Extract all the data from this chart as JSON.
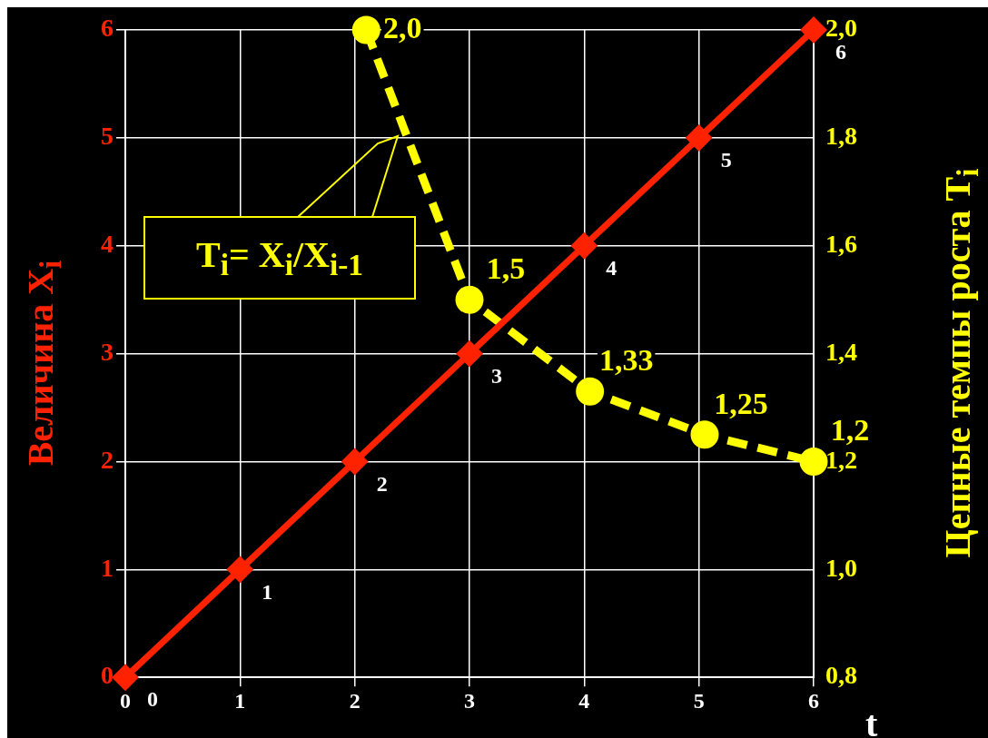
{
  "chart_data": {
    "type": "line",
    "xlabel": "t",
    "ylabel": "Величина X$_{i}$",
    "y2label": "Цепные темпы роста T$_{i}$",
    "x": [
      0,
      1,
      2,
      3,
      4,
      5,
      6
    ],
    "series": [
      {
        "color": "#ff2200",
        "values": [
          0,
          1,
          2,
          3,
          4,
          5,
          6
        ],
        "value_labels": [
          "0",
          "1",
          "2",
          "3",
          "4",
          "5",
          "6"
        ],
        "marker": "diamond",
        "line_style": "solid"
      },
      {
        "color": "#ffff00",
        "axis": "y2",
        "x": [
          2.1,
          3,
          4.05,
          5.05,
          6
        ],
        "values": [
          2.0,
          1.5,
          1.33,
          1.25,
          1.2
        ],
        "value_labels": [
          "2,0",
          "1,5",
          "1,33",
          "1,25",
          "1,2"
        ],
        "marker": "circle",
        "line_style": "dashed"
      }
    ],
    "xlim": [
      0,
      6
    ],
    "xticks": [
      0,
      1,
      2,
      3,
      4,
      5,
      6
    ],
    "ylim": [
      0,
      6
    ],
    "yticks": [
      0,
      1,
      2,
      3,
      4,
      5,
      6
    ],
    "y2lim": [
      0.8,
      2.0
    ],
    "y2ticks": [
      {
        "value": 0.8,
        "label": "0,8"
      },
      {
        "value": 1.0,
        "label": "1,0"
      },
      {
        "value": 1.2,
        "label": "1,2"
      },
      {
        "value": 1.4,
        "label": "1,4"
      },
      {
        "value": 1.6,
        "label": "1,6"
      },
      {
        "value": 1.8,
        "label": "1,8"
      },
      {
        "value": 2.0,
        "label": "2,0"
      }
    ],
    "grid": true,
    "legend": false,
    "annotations": [
      "T$_{i}$= X$_{i}$/X$_{i-1}$"
    ]
  }
}
